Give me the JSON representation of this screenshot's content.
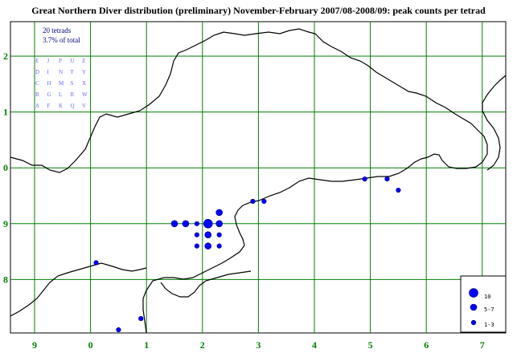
{
  "title": "Great Northern Diver distribution (preliminary) November-February 2007/08-2008/09: peak counts per tetrad",
  "stats": {
    "tetrads": "20 tetrads",
    "percent": "3.7% of total"
  },
  "tetrad_letters": [
    [
      "E",
      "J",
      "P",
      "U",
      "Z"
    ],
    [
      "D",
      "I",
      "N",
      "T",
      "Y"
    ],
    [
      "C",
      "H",
      "M",
      "S",
      "X"
    ],
    [
      "B",
      "G",
      "L",
      "R",
      "W"
    ],
    [
      "A",
      "F",
      "K",
      "Q",
      "V"
    ]
  ],
  "x_axis_labels": [
    "9",
    "0",
    "1",
    "2",
    "3",
    "4",
    "5",
    "6",
    "7"
  ],
  "y_axis_labels": [
    "2",
    "1",
    "0",
    "9",
    "8"
  ],
  "colors": {
    "grid": "#008000",
    "coast": "#000000",
    "dot": "#0000ff",
    "dot_outline": "#000080",
    "axis_text": "#008000",
    "letters": "#6666ff",
    "stats_text": "#000080"
  },
  "legend": [
    {
      "label": "10",
      "size": "large"
    },
    {
      "label": "5-7",
      "size": "medium"
    },
    {
      "label": "1-3",
      "size": "small"
    }
  ],
  "chart_data": {
    "type": "scatter",
    "title": "Great Northern Diver distribution (preliminary) November-February 2007/08-2008/09: peak counts per tetrad",
    "x_ticks": [
      "9",
      "0",
      "1",
      "2",
      "3",
      "4",
      "5",
      "6",
      "7"
    ],
    "y_ticks": [
      "2",
      "1",
      "0",
      "9",
      "8"
    ],
    "xlim": [
      -0.6,
      8.6
    ],
    "ylim": [
      -0.45,
      5.55
    ],
    "grid": true,
    "legend_position": "bottom-right",
    "points": [
      {
        "x": 2.5,
        "y": 2.0,
        "size": "medium"
      },
      {
        "x": 2.7,
        "y": 2.0,
        "size": "medium"
      },
      {
        "x": 2.9,
        "y": 2.0,
        "size": "small"
      },
      {
        "x": 3.1,
        "y": 2.0,
        "size": "large"
      },
      {
        "x": 3.3,
        "y": 2.0,
        "size": "medium"
      },
      {
        "x": 3.3,
        "y": 2.2,
        "size": "medium"
      },
      {
        "x": 2.9,
        "y": 1.8,
        "size": "small"
      },
      {
        "x": 3.1,
        "y": 1.8,
        "size": "medium"
      },
      {
        "x": 3.3,
        "y": 1.8,
        "size": "small"
      },
      {
        "x": 2.9,
        "y": 1.6,
        "size": "small"
      },
      {
        "x": 3.1,
        "y": 1.6,
        "size": "medium"
      },
      {
        "x": 3.3,
        "y": 1.6,
        "size": "small"
      },
      {
        "x": 3.9,
        "y": 2.4,
        "size": "small"
      },
      {
        "x": 4.1,
        "y": 2.4,
        "size": "small"
      },
      {
        "x": 5.9,
        "y": 2.8,
        "size": "small"
      },
      {
        "x": 6.3,
        "y": 2.8,
        "size": "small"
      },
      {
        "x": 6.5,
        "y": 2.6,
        "size": "small"
      },
      {
        "x": 1.1,
        "y": 1.3,
        "size": "small"
      },
      {
        "x": 1.9,
        "y": 0.3,
        "size": "small"
      },
      {
        "x": 1.5,
        "y": 0.1,
        "size": "small"
      }
    ]
  }
}
